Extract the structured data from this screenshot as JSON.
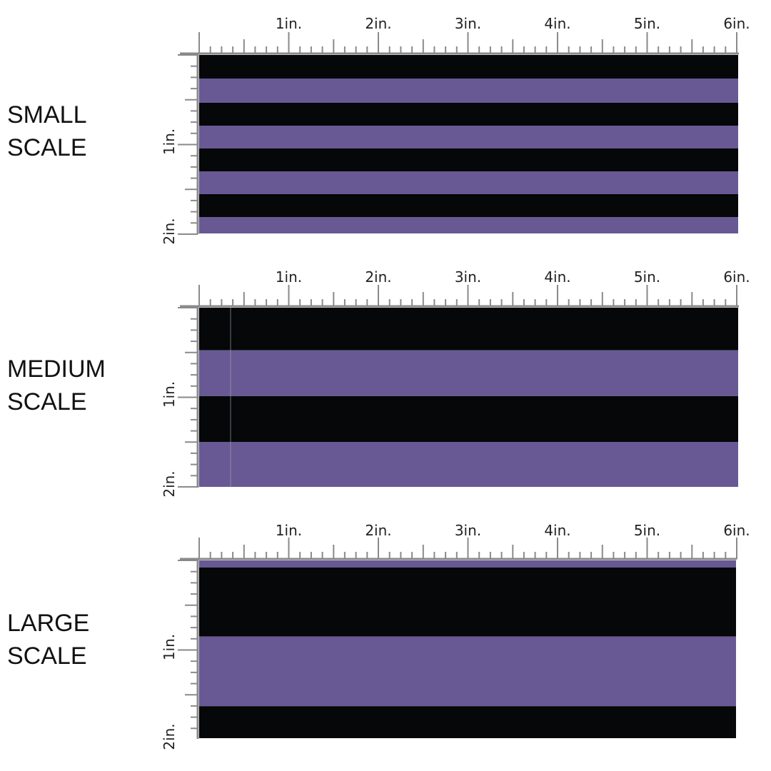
{
  "colors": {
    "black_stripe": "#050708",
    "purple_stripe": "#685995",
    "ruler": "#8a8a8a",
    "ruler_text": "#222222"
  },
  "ruler": {
    "top_labels": [
      "1in.",
      "2in.",
      "3in.",
      "4in.",
      "5in.",
      "6in."
    ],
    "side_labels": [
      "1in.",
      "2in."
    ]
  },
  "panels": [
    {
      "id": "small",
      "label_lines": [
        "SMALL",
        "SCALE"
      ],
      "stripes": [
        "black",
        "purple",
        "black",
        "purple",
        "black",
        "purple",
        "black",
        "purple"
      ]
    },
    {
      "id": "medium",
      "label_lines": [
        "MEDIUM",
        "SCALE"
      ],
      "stripes": [
        "black",
        "purple",
        "black",
        "purple"
      ]
    },
    {
      "id": "large",
      "label_lines": [
        "LARGE",
        "SCALE"
      ],
      "stripes": [
        "purple",
        "black",
        "purple",
        "black"
      ]
    }
  ]
}
